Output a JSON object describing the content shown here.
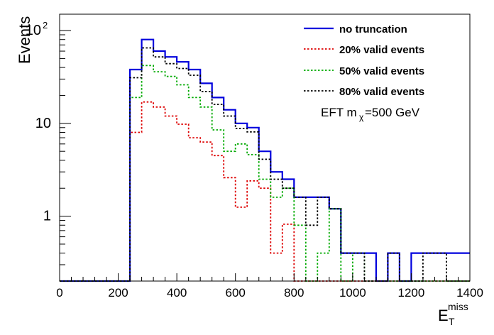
{
  "chart_data": {
    "type": "step",
    "xlabel": "E",
    "xlabel_sub": "T",
    "xlabel_sup": "miss",
    "ylabel": "Events",
    "xlim": [
      0,
      1400
    ],
    "ylim": [
      0.2,
      150
    ],
    "yscale": "log",
    "x_ticks": [
      0,
      200,
      400,
      600,
      800,
      1000,
      1200,
      1400
    ],
    "y_ticks": [
      {
        "value": 1,
        "label": "1"
      },
      {
        "value": 10,
        "label": "10"
      },
      {
        "value": 100,
        "label": "10",
        "sup": "2"
      }
    ],
    "annotation": {
      "text": "EFT m",
      "sub": "χ",
      "rest": "=500 GeV"
    },
    "bin_edges": [
      0,
      40,
      80,
      120,
      160,
      200,
      240,
      280,
      320,
      360,
      400,
      440,
      480,
      520,
      560,
      600,
      640,
      680,
      720,
      760,
      800,
      840,
      880,
      920,
      960,
      1000,
      1040,
      1080,
      1120,
      1160,
      1200,
      1240,
      1280,
      1320,
      1360,
      1400
    ],
    "series": [
      {
        "name": "no truncation",
        "color": "#0000dd",
        "style": "solid",
        "values": [
          0,
          0,
          0,
          0,
          0,
          0,
          38,
          80,
          60,
          52,
          46,
          38,
          27,
          19,
          14,
          10,
          9,
          5,
          3,
          2.5,
          1.6,
          1.6,
          1.6,
          1.2,
          0.4,
          0.4,
          0.4,
          0,
          0.4,
          0,
          0.4,
          0.4,
          0.4,
          0.4,
          0.4
        ]
      },
      {
        "name": "20% valid events",
        "color": "#dd0000",
        "style": "dotted",
        "values": [
          0,
          0,
          0,
          0,
          0,
          0,
          8,
          17,
          15,
          12,
          9.8,
          7,
          6.3,
          4.5,
          2.6,
          1.25,
          2.4,
          2,
          0.4,
          0.82,
          0,
          0,
          0,
          0,
          0,
          0,
          0,
          0,
          0,
          0,
          0,
          0,
          0,
          0,
          0
        ]
      },
      {
        "name": "50% valid events",
        "color": "#00aa00",
        "style": "dotted",
        "values": [
          0,
          0,
          0,
          0,
          0,
          0,
          19,
          42,
          36,
          32,
          26,
          19,
          15,
          8.5,
          5,
          6,
          4.6,
          2.5,
          1.6,
          2,
          0.8,
          0,
          0.4,
          1.2,
          0,
          0.4,
          0,
          0,
          0,
          0,
          0,
          0,
          0,
          0,
          0
        ]
      },
      {
        "name": "80% valid events",
        "color": "#000000",
        "style": "dotted",
        "values": [
          0,
          0,
          0,
          0,
          0,
          0,
          31,
          65,
          52,
          44,
          39,
          33,
          22,
          16,
          12,
          8.8,
          8.1,
          4.1,
          2.5,
          2,
          1.6,
          0.8,
          1.6,
          1.2,
          0.4,
          0.4,
          0,
          0,
          0.4,
          0,
          0,
          0.4,
          0.4,
          0,
          0
        ]
      }
    ],
    "legend_position": "top-right",
    "grid": false
  }
}
